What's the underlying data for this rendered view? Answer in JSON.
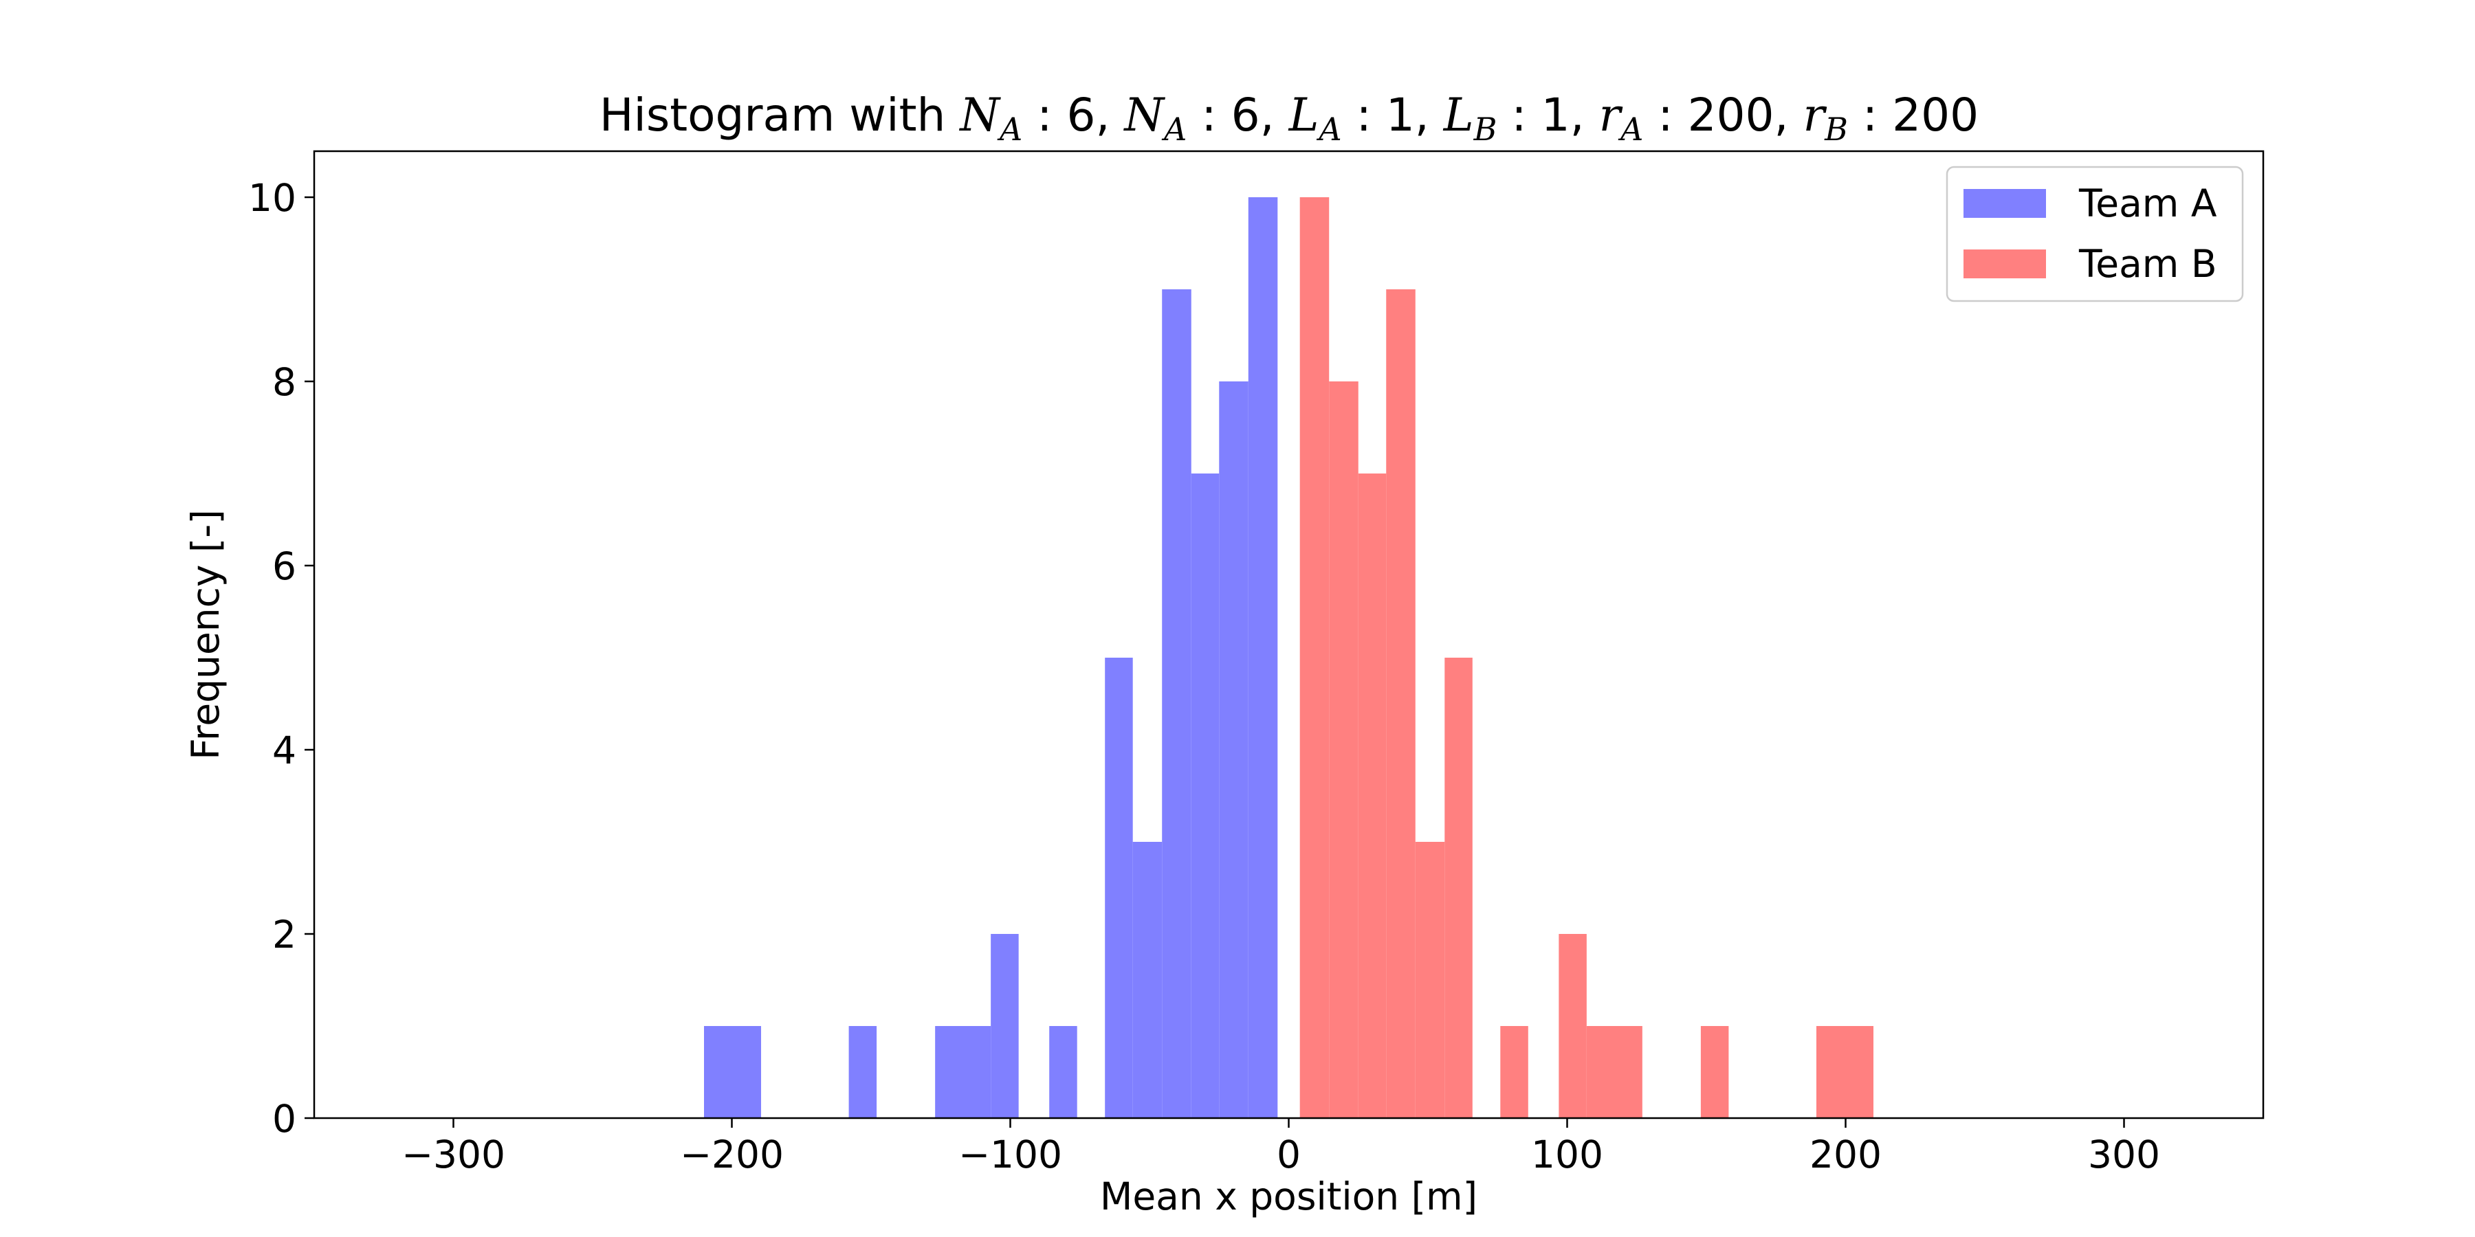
{
  "chart_data": {
    "type": "bar",
    "title_prefix": "Histogram with ",
    "title_params": [
      {
        "sym": "N",
        "sub": "A",
        "val": "6"
      },
      {
        "sym": "N",
        "sub": "A",
        "val": "6"
      },
      {
        "sym": "L",
        "sub": "A",
        "val": "1"
      },
      {
        "sym": "L",
        "sub": "B",
        "val": "1"
      },
      {
        "sym": "r",
        "sub": "A",
        "val": "200"
      },
      {
        "sym": "r",
        "sub": "B",
        "val": "200"
      }
    ],
    "xlabel": "Mean x position [m]",
    "ylabel": "Frequency [-]",
    "xlim": [
      -350,
      350
    ],
    "ylim": [
      0,
      10.5
    ],
    "xticks": [
      -300,
      -200,
      -100,
      0,
      100,
      200,
      300
    ],
    "xtick_labels": [
      "−300",
      "−200",
      "−100",
      "0",
      "100",
      "200",
      "300"
    ],
    "yticks": [
      0,
      2,
      4,
      6,
      8,
      10
    ],
    "ytick_labels": [
      "0",
      "2",
      "4",
      "6",
      "8",
      "10"
    ],
    "grid": false,
    "legend_position": "top-right",
    "series": [
      {
        "name": "Team A",
        "color": "#8080ff",
        "bins": [
          {
            "start": -210,
            "end": -189.5,
            "count": 1
          },
          {
            "start": -158,
            "end": -148,
            "count": 1
          },
          {
            "start": -127,
            "end": -107,
            "count": 1
          },
          {
            "start": -107,
            "end": -97,
            "count": 2
          },
          {
            "start": -86,
            "end": -76,
            "count": 1
          },
          {
            "start": -66,
            "end": -56,
            "count": 5
          },
          {
            "start": -56,
            "end": -45.5,
            "count": 3
          },
          {
            "start": -45.5,
            "end": -35,
            "count": 9
          },
          {
            "start": -35,
            "end": -25,
            "count": 7
          },
          {
            "start": -25,
            "end": -14.5,
            "count": 8
          },
          {
            "start": -14.5,
            "end": -4,
            "count": 10
          }
        ]
      },
      {
        "name": "Team B",
        "color": "#ff8080",
        "bins": [
          {
            "start": 4,
            "end": 14.5,
            "count": 10
          },
          {
            "start": 14.5,
            "end": 25,
            "count": 8
          },
          {
            "start": 25,
            "end": 35,
            "count": 7
          },
          {
            "start": 35,
            "end": 45.5,
            "count": 9
          },
          {
            "start": 45.5,
            "end": 56,
            "count": 3
          },
          {
            "start": 56,
            "end": 66,
            "count": 5
          },
          {
            "start": 76,
            "end": 86,
            "count": 1
          },
          {
            "start": 97,
            "end": 107,
            "count": 2
          },
          {
            "start": 107,
            "end": 127,
            "count": 1
          },
          {
            "start": 148,
            "end": 158,
            "count": 1
          },
          {
            "start": 189.5,
            "end": 210,
            "count": 1
          }
        ]
      }
    ]
  }
}
